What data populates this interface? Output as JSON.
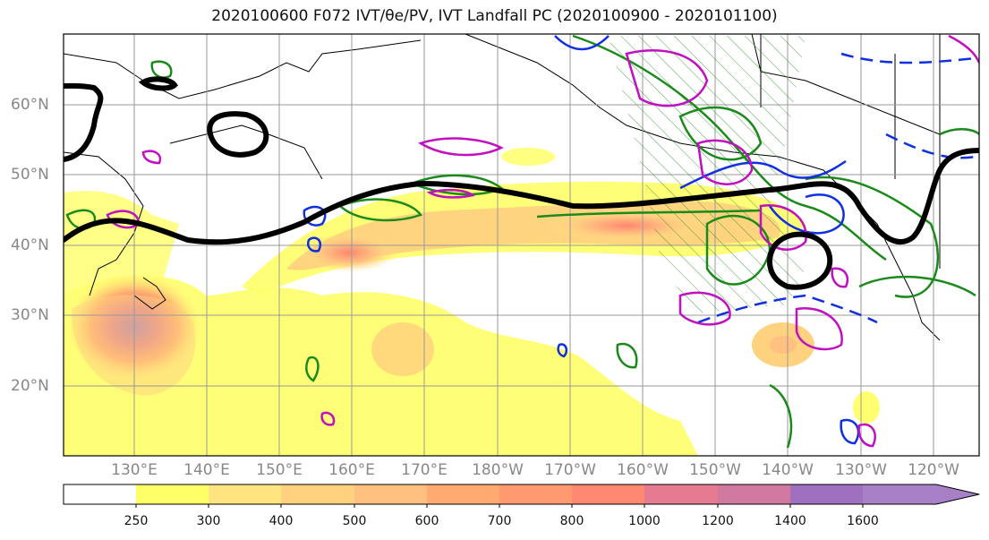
{
  "title": "2020100600 F072 IVT/θe/PV, IVT Landfall PC (2020100900 - 2020101100)",
  "map": {
    "lon_labels": [
      "130°E",
      "140°E",
      "150°E",
      "160°E",
      "170°E",
      "180°W",
      "170°W",
      "160°W",
      "150°W",
      "140°W",
      "130°W",
      "120°W"
    ],
    "lat_labels": [
      "60°N",
      "50°N",
      "40°N",
      "30°N",
      "20°N"
    ],
    "ivt_shading": "IVT filled contours (warm palette)",
    "overlays": [
      "thick black contour",
      "green contours",
      "blue contours (solid/dashed)",
      "magenta contours",
      "green hatching"
    ]
  },
  "colorbar": {
    "ticks": [
      "250",
      "300",
      "400",
      "500",
      "600",
      "700",
      "800",
      "1000",
      "1200",
      "1400",
      "1600"
    ],
    "colors": [
      "#ffffff",
      "#ffff66",
      "#ffe480",
      "#ffd280",
      "#ffc080",
      "#ffaa70",
      "#ff9a70",
      "#ff8870",
      "#e67a90",
      "#d07aa0",
      "#a070c0",
      "#a880c8"
    ]
  }
}
